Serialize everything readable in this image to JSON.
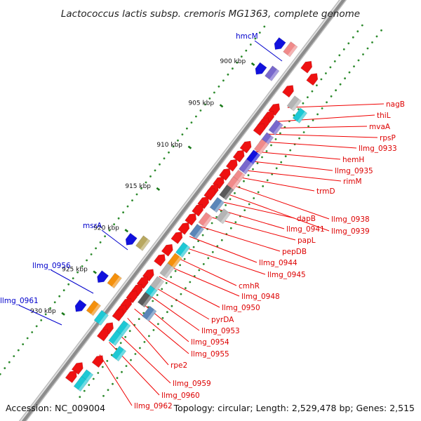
{
  "title": "Lactococcus lactis subsp. cremoris MG1363, complete genome",
  "footer": {
    "accession": "Accession: NC_009004",
    "summary": "Topology: circular; Length: 2,529,478 bp; Genes: 2,515"
  },
  "colors": {
    "background": "#ffffff",
    "backbone": "#8c8c8c",
    "backbone_highlight": "#e2e2e2",
    "tick": "#1a7a1a",
    "grid_dot": "#2e8b2e",
    "forward_label": "#0000cc",
    "reverse_label": "#dd0000",
    "red": "#ee1111",
    "pink": "#f08a8a",
    "blue": "#1111dd",
    "purple": "#7868cc",
    "cyan": "#1ec8d4",
    "grey": "#b4b4b4",
    "darkgrey": "#5a5a5a",
    "steel": "#5a86b8",
    "orange": "#f4900c",
    "olive": "#b8a860"
  },
  "scale": {
    "unit": "kbp",
    "ticks": [
      {
        "pos": 900,
        "label": "900 kbp"
      },
      {
        "pos": 905,
        "label": "905 kbp"
      },
      {
        "pos": 910,
        "label": "910 kbp"
      },
      {
        "pos": 915,
        "label": "915 kbp"
      },
      {
        "pos": 920,
        "label": "920 kbp"
      },
      {
        "pos": 925,
        "label": "925 kbp"
      },
      {
        "pos": 930,
        "label": "930 kbp"
      }
    ]
  },
  "features": [
    {
      "pos": 896.7,
      "ring": 1,
      "color": "pink",
      "dir": "none"
    },
    {
      "pos": 897.0,
      "ring": 2,
      "color": "blue",
      "dir": "cw"
    },
    {
      "pos": 897.0,
      "ring": -1,
      "color": "red",
      "dir": "ccw"
    },
    {
      "pos": 897.6,
      "ring": -2,
      "color": "red",
      "dir": "ccw"
    },
    {
      "pos": 899.6,
      "ring": 1,
      "color": "purple",
      "dir": "none"
    },
    {
      "pos": 900.0,
      "ring": 2,
      "color": "blue",
      "dir": "cw"
    },
    {
      "pos": 899.9,
      "ring": -1,
      "color": "red",
      "dir": "ccw"
    },
    {
      "pos": 900.6,
      "ring": -2,
      "color": "grey",
      "dir": "none"
    },
    {
      "pos": 901.2,
      "ring": -3,
      "color": "cyan",
      "dir": "none"
    },
    {
      "pos": 902.1,
      "ring": -1,
      "color": "red",
      "dir": "ccw"
    },
    {
      "pos": 903.0,
      "ring": -1,
      "color": "red",
      "dir": "ccw"
    },
    {
      "pos": 903.5,
      "ring": -2,
      "color": "purple",
      "dir": "none"
    },
    {
      "pos": 903.8,
      "ring": -1,
      "color": "red",
      "dir": "ccw"
    },
    {
      "pos": 904.5,
      "ring": -1,
      "color": "red",
      "dir": "ccw"
    },
    {
      "pos": 905.0,
      "ring": -2,
      "color": "purple",
      "dir": "none"
    },
    {
      "pos": 905.8,
      "ring": -2,
      "color": "pink",
      "dir": "none"
    },
    {
      "pos": 906.6,
      "ring": -1,
      "color": "red",
      "dir": "ccw"
    },
    {
      "pos": 907.1,
      "ring": -2,
      "color": "blue",
      "dir": "none"
    },
    {
      "pos": 907.7,
      "ring": -1,
      "color": "red",
      "dir": "ccw"
    },
    {
      "pos": 908.2,
      "ring": -2,
      "color": "purple",
      "dir": "none"
    },
    {
      "pos": 908.8,
      "ring": -1,
      "color": "red",
      "dir": "ccw"
    },
    {
      "pos": 909.5,
      "ring": -2,
      "color": "pink",
      "dir": "none"
    },
    {
      "pos": 909.9,
      "ring": -1,
      "color": "red",
      "dir": "ccw"
    },
    {
      "pos": 910.3,
      "ring": -2,
      "color": "pink",
      "dir": "none"
    },
    {
      "pos": 910.9,
      "ring": -1,
      "color": "red",
      "dir": "ccw"
    },
    {
      "pos": 911.3,
      "ring": -2,
      "color": "darkgrey",
      "dir": "none"
    },
    {
      "pos": 911.8,
      "ring": -1,
      "color": "red",
      "dir": "ccw"
    },
    {
      "pos": 912.3,
      "ring": -1,
      "color": "red",
      "dir": "ccw"
    },
    {
      "pos": 912.8,
      "ring": -2,
      "color": "steel",
      "dir": "none"
    },
    {
      "pos": 913.3,
      "ring": -1,
      "color": "red",
      "dir": "ccw"
    },
    {
      "pos": 913.3,
      "ring": -3,
      "color": "grey",
      "dir": "none"
    },
    {
      "pos": 914.2,
      "ring": -1,
      "color": "red",
      "dir": "ccw"
    },
    {
      "pos": 914.6,
      "ring": -2,
      "color": "pink",
      "dir": "none"
    },
    {
      "pos": 915.3,
      "ring": -1,
      "color": "red",
      "dir": "ccw"
    },
    {
      "pos": 916.0,
      "ring": -2,
      "color": "steel",
      "dir": "none"
    },
    {
      "pos": 916.4,
      "ring": -1,
      "color": "red",
      "dir": "ccw"
    },
    {
      "pos": 917.5,
      "ring": -1,
      "color": "red",
      "dir": "ccw"
    },
    {
      "pos": 918.2,
      "ring": -2,
      "color": "cyan",
      "dir": "none"
    },
    {
      "pos": 919.0,
      "ring": -1,
      "color": "red",
      "dir": "ccw"
    },
    {
      "pos": 919.5,
      "ring": -2,
      "color": "orange",
      "dir": "none"
    },
    {
      "pos": 920.0,
      "ring": 1,
      "color": "olive",
      "dir": "none"
    },
    {
      "pos": 920.5,
      "ring": 2,
      "color": "blue",
      "dir": "cw"
    },
    {
      "pos": 920.2,
      "ring": -1,
      "color": "red",
      "dir": "ccw"
    },
    {
      "pos": 920.7,
      "ring": -2,
      "color": "grey",
      "dir": "none"
    },
    {
      "pos": 922.0,
      "ring": -1,
      "color": "red",
      "dir": "ccw"
    },
    {
      "pos": 922.3,
      "ring": -2,
      "color": "grey",
      "dir": "none"
    },
    {
      "pos": 922.9,
      "ring": -1,
      "color": "red",
      "dir": "ccw"
    },
    {
      "pos": 923.4,
      "ring": -2,
      "color": "cyan",
      "dir": "none"
    },
    {
      "pos": 923.8,
      "ring": -1,
      "color": "red",
      "dir": "ccw"
    },
    {
      "pos": 924.2,
      "ring": -2,
      "color": "darkgrey",
      "dir": "none"
    },
    {
      "pos": 924.5,
      "ring": 1,
      "color": "orange",
      "dir": "none"
    },
    {
      "pos": 925.0,
      "ring": 2,
      "color": "blue",
      "dir": "cw"
    },
    {
      "pos": 924.6,
      "ring": -1,
      "color": "red",
      "dir": "ccw"
    },
    {
      "pos": 925.0,
      "ring": -3,
      "color": "steel",
      "dir": "none"
    },
    {
      "pos": 925.5,
      "ring": -1,
      "color": "red",
      "dir": "ccw"
    },
    {
      "pos": 926.3,
      "ring": -1,
      "color": "red",
      "dir": "ccw"
    },
    {
      "pos": 926.8,
      "ring": -1,
      "color": "red",
      "dir": "ccw"
    },
    {
      "pos": 927.6,
      "ring": -2,
      "color": "cyan",
      "dir": "none"
    },
    {
      "pos": 927.8,
      "ring": 1,
      "color": "orange",
      "dir": "none"
    },
    {
      "pos": 928.1,
      "ring": 0,
      "color": "cyan",
      "dir": "none"
    },
    {
      "pos": 928.5,
      "ring": 2,
      "color": "blue",
      "dir": "cw"
    },
    {
      "pos": 928.4,
      "ring": -1,
      "color": "red",
      "dir": "ccw"
    },
    {
      "pos": 928.8,
      "ring": -2,
      "color": "cyan",
      "dir": "none"
    },
    {
      "pos": 929.2,
      "ring": -1,
      "color": "red",
      "dir": "ccw"
    },
    {
      "pos": 929.8,
      "ring": -3,
      "color": "cyan",
      "dir": "none"
    },
    {
      "pos": 931.5,
      "ring": -2,
      "color": "red",
      "dir": "ccw"
    },
    {
      "pos": 933.2,
      "ring": -1,
      "color": "red",
      "dir": "ccw"
    },
    {
      "pos": 933.5,
      "ring": -2,
      "color": "cyan",
      "dir": "none"
    },
    {
      "pos": 934.2,
      "ring": -1,
      "color": "red",
      "dir": "ccw"
    },
    {
      "pos": 934.3,
      "ring": -2,
      "color": "cyan",
      "dir": "none"
    }
  ],
  "forward_labels": [
    {
      "name": "hmcM",
      "pos": 899.0
    },
    {
      "name": "msrA",
      "pos": 920.0
    },
    {
      "name": "llmg_0956",
      "pos": 924.5
    },
    {
      "name": "llmg_0961",
      "pos": 927.8
    }
  ],
  "reverse_labels": [
    {
      "name": "nagB",
      "pos": 901.3
    },
    {
      "name": "thiL",
      "pos": 903.0
    },
    {
      "name": "mvaA",
      "pos": 903.8
    },
    {
      "name": "rpsP",
      "pos": 904.5
    },
    {
      "name": "llmg_0933",
      "pos": 905.4
    },
    {
      "name": "hemH",
      "pos": 906.6
    },
    {
      "name": "llmg_0935",
      "pos": 907.7
    },
    {
      "name": "rimM",
      "pos": 908.8
    },
    {
      "name": "trmD",
      "pos": 909.6
    },
    {
      "name": "dapB",
      "pos": 912.5
    },
    {
      "name": "llmg_0938",
      "pos": 910.5
    },
    {
      "name": "llmg_0941",
      "pos": 913.3
    },
    {
      "name": "llmg_0939",
      "pos": 911.5
    },
    {
      "name": "papL",
      "pos": 914.3
    },
    {
      "name": "pepDB",
      "pos": 915.5
    },
    {
      "name": "llmg_0944",
      "pos": 916.8
    },
    {
      "name": "llmg_0945",
      "pos": 918.0
    },
    {
      "name": "cmhR",
      "pos": 919.2
    },
    {
      "name": "llmg_0948",
      "pos": 920.3
    },
    {
      "name": "llmg_0950",
      "pos": 921.6
    },
    {
      "name": "pyrDA",
      "pos": 922.7
    },
    {
      "name": "llmg_0953",
      "pos": 923.6
    },
    {
      "name": "llmg_0954",
      "pos": 924.6
    },
    {
      "name": "llmg_0955",
      "pos": 925.5
    },
    {
      "name": "rpe2",
      "pos": 926.6
    },
    {
      "name": "llmg_0959",
      "pos": 928.3
    },
    {
      "name": "llmg_0960",
      "pos": 929.5
    },
    {
      "name": "llmg_0962",
      "pos": 931.0
    }
  ]
}
